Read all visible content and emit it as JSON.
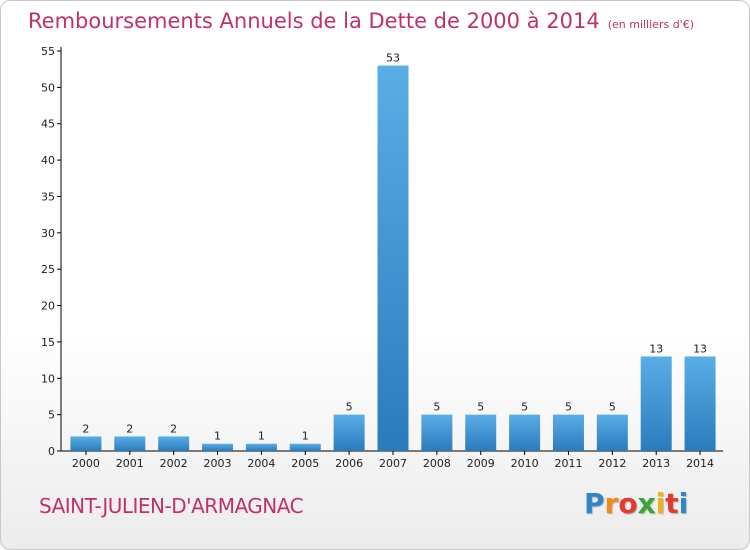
{
  "chart_data": {
    "type": "bar",
    "title": "Remboursements Annuels de la Dette de 2000 à 2014",
    "unit_note": "(en milliers d'€)",
    "xlabel": "",
    "ylabel": "",
    "categories": [
      "2000",
      "2001",
      "2002",
      "2003",
      "2004",
      "2005",
      "2006",
      "2007",
      "2008",
      "2009",
      "2010",
      "2011",
      "2012",
      "2013",
      "2014"
    ],
    "values": [
      2,
      2,
      2,
      1,
      1,
      1,
      5,
      53,
      5,
      5,
      5,
      5,
      5,
      13,
      13
    ],
    "ylim": [
      0,
      55
    ],
    "yticks": [
      0,
      5,
      10,
      15,
      20,
      25,
      30,
      35,
      40,
      45,
      50,
      55
    ],
    "grid": false,
    "legend": "none",
    "colors": {
      "bar_top": "#5aaee6",
      "bar_bottom": "#2a7bbd",
      "title": "#c0306e",
      "axis": "#000000"
    }
  },
  "commune": "SAINT-JULIEN-D'ARMAGNAC",
  "logo": {
    "letters": [
      "P",
      "r",
      "o",
      "x",
      "i",
      "t",
      "i"
    ],
    "colors": [
      "#2e86c9",
      "#f08a1c",
      "#e33b2e",
      "#3aa33a",
      "#f0b21c",
      "#e33b2e",
      "#2e86c9"
    ]
  }
}
